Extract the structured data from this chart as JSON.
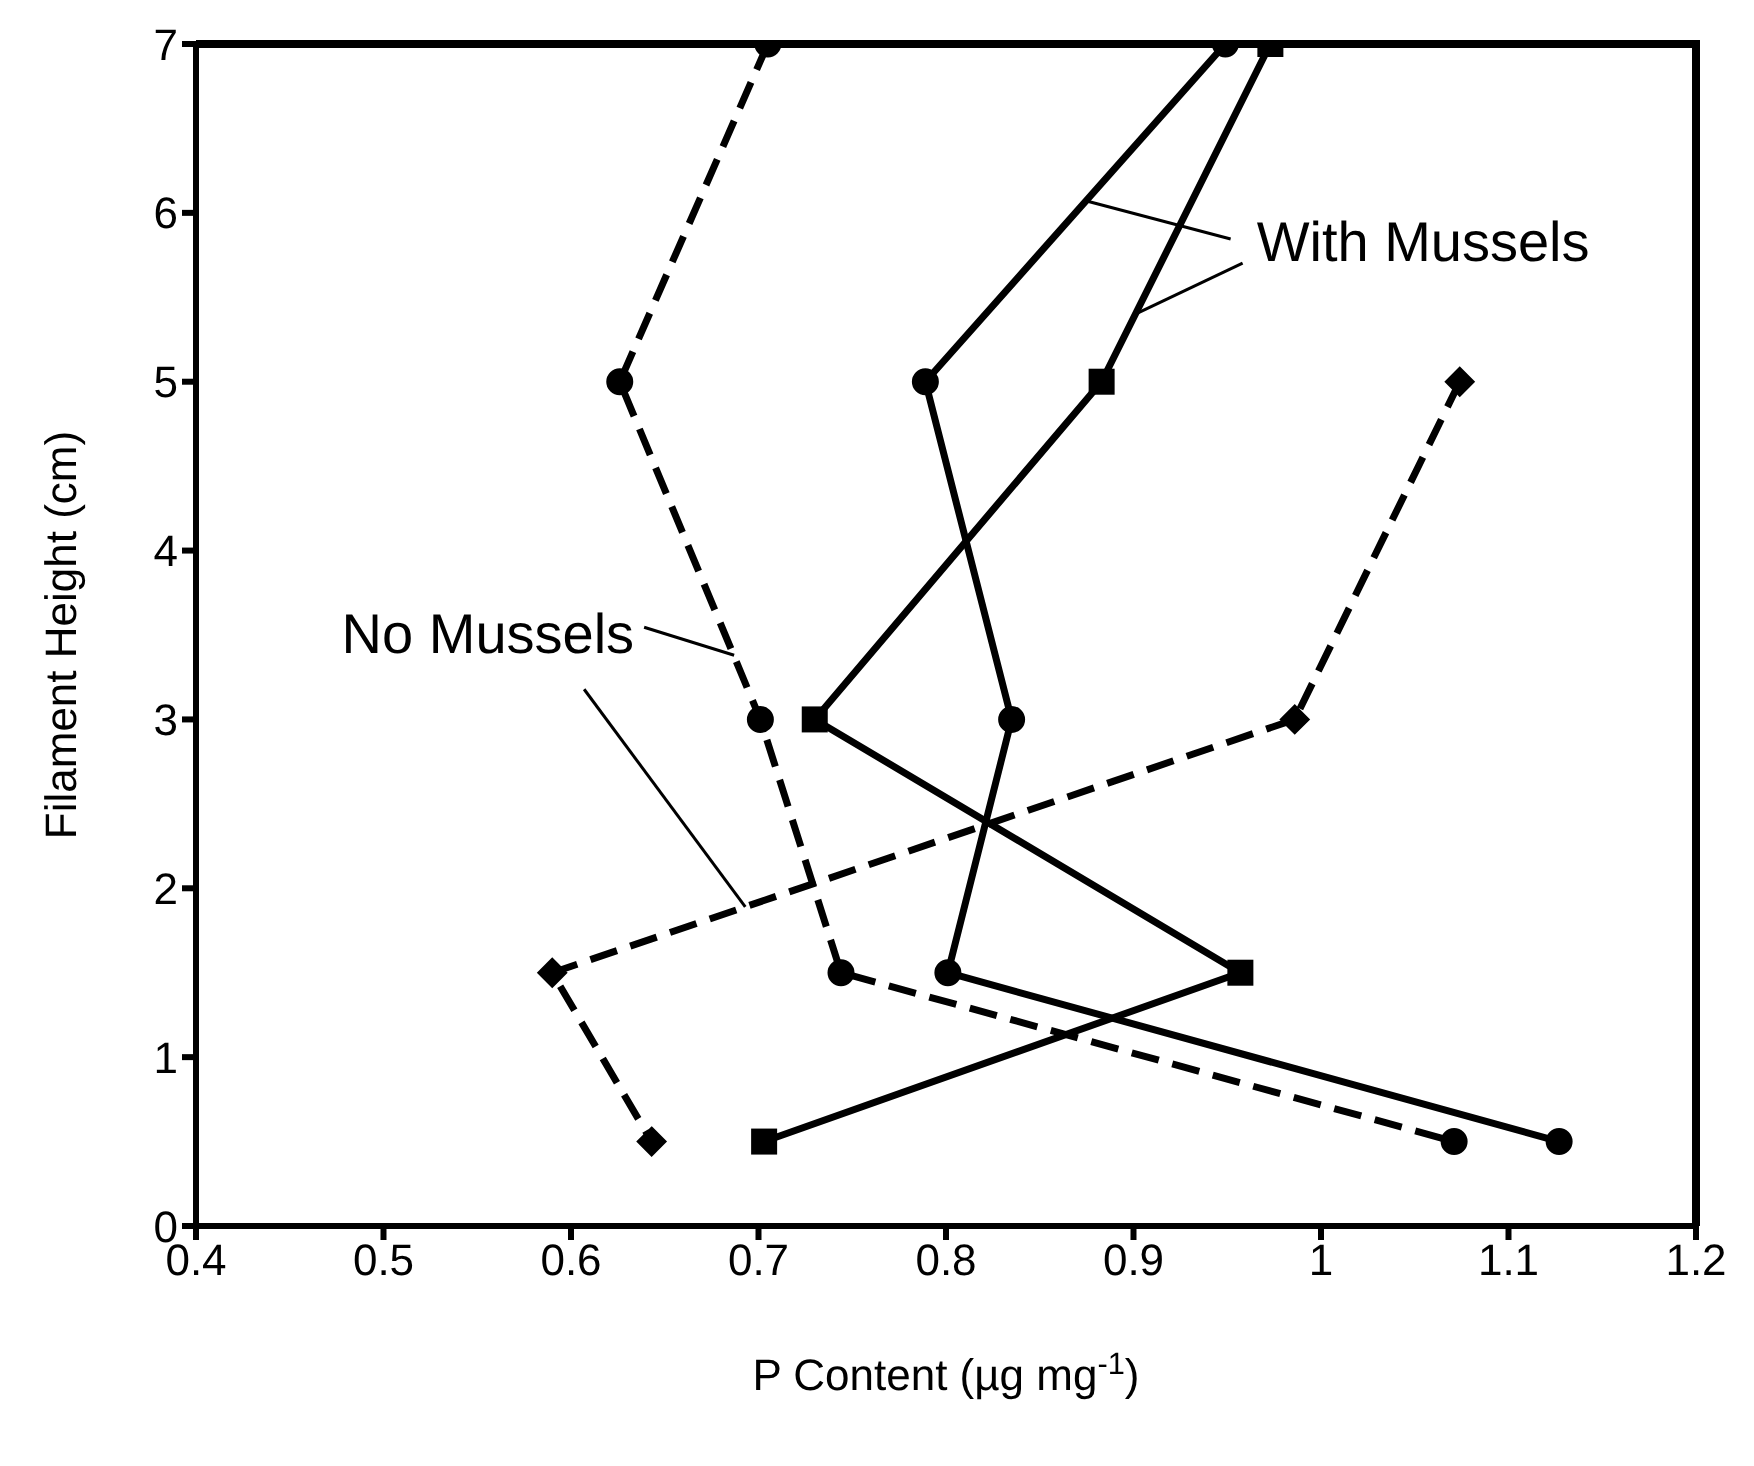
{
  "chart_data": {
    "type": "line",
    "xlabel": "P Content (µg mg$^{-1}$)",
    "ylabel": "Filament Height (cm)",
    "xlim": [
      0.4,
      1.2
    ],
    "xticks": [
      0.4,
      0.5,
      0.6,
      0.7,
      0.8,
      0.9,
      1,
      1.1,
      1.2
    ],
    "ylim": [
      0,
      7
    ],
    "yticks": [
      0,
      1,
      2,
      3,
      4,
      5,
      6,
      7
    ],
    "grid": false,
    "series": [
      {
        "color": "#000000",
        "marker": "circle",
        "line_style": "solid",
        "x": [
          0.949,
          0.789,
          0.835,
          0.801,
          1.127
        ],
        "values": [
          7,
          5,
          3,
          1.5,
          0.5
        ]
      },
      {
        "color": "#000000",
        "marker": "square",
        "line_style": "solid",
        "x": [
          0.973,
          0.883,
          0.73,
          0.957,
          0.703
        ],
        "values": [
          7,
          5,
          3,
          1.5,
          0.5
        ]
      },
      {
        "color": "#000000",
        "marker": "circle",
        "line_style": "dashed",
        "x": [
          0.705,
          0.626,
          0.701,
          0.744,
          1.071
        ],
        "values": [
          7,
          5,
          3,
          1.5,
          0.5
        ]
      },
      {
        "color": "#000000",
        "marker": "diamond",
        "line_style": "dashed",
        "x": [
          1.074,
          0.986,
          0.59,
          0.643
        ],
        "values": [
          5,
          3,
          1.5,
          0.5
        ]
      }
    ],
    "annotations": [
      {
        "text": "With Mussels",
        "x": 0.875,
        "y": 6.07
      },
      {
        "text": "No Mussels",
        "x": 0.687,
        "y": 3.38
      }
    ]
  }
}
